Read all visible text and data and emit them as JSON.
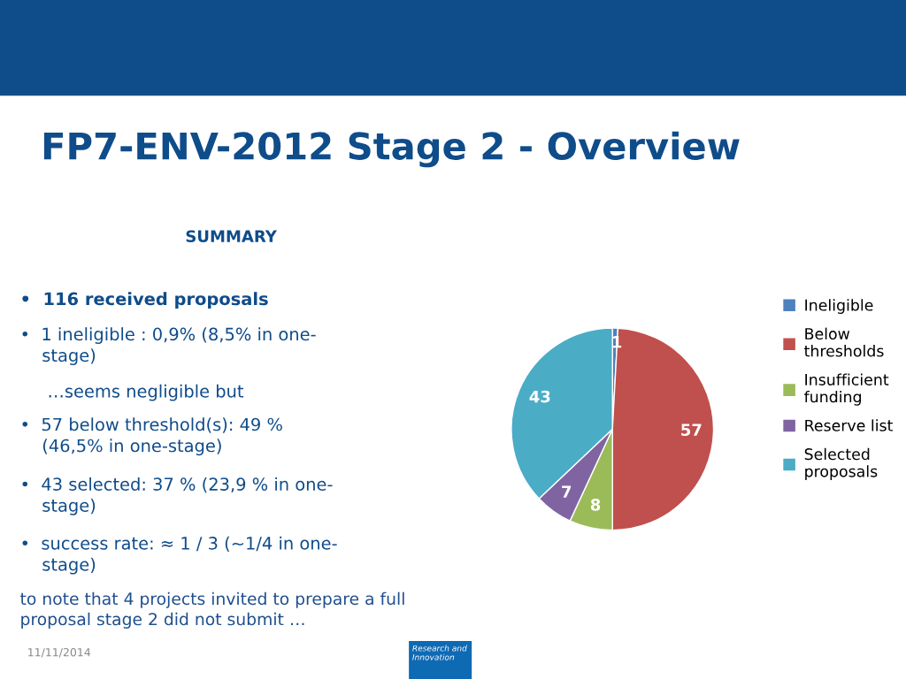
{
  "chart_data": {
    "type": "pie",
    "title": "FP7-ENV-2012 Stage 2 - Overview",
    "subtitle": "SUMMARY",
    "categories": [
      "Ineligible",
      "Below thresholds",
      "Insufficient funding",
      "Reserve list",
      "Selected proposals"
    ],
    "values": [
      1,
      57,
      8,
      7,
      43
    ],
    "colors": [
      "#4f81bd",
      "#c0504d",
      "#9bbb59",
      "#8064a2",
      "#4bacc6"
    ],
    "data_labels": true,
    "legend": "right",
    "annotations": [
      "•  116 received proposals",
      "•  1 ineligible : 0,9% (8,5% in one-\n    stage)",
      "     …seems negligible but",
      "•  57 below threshold(s): 49 %\n    (46,5% in one-stage)",
      "•  43 selected: 37 % (23,9 % in one-\n    stage)",
      "•  success rate: ≈ 1 / 3 (~1/4 in one-\n    stage)",
      "to note that 4 projects invited to prepare a full\nproposal stage 2 did not submit …",
      "11/11/2014",
      "Research and\nInnovation"
    ]
  }
}
